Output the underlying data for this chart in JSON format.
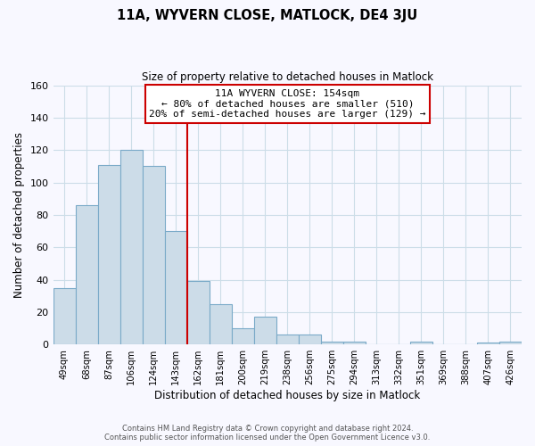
{
  "title": "11A, WYVERN CLOSE, MATLOCK, DE4 3JU",
  "subtitle": "Size of property relative to detached houses in Matlock",
  "xlabel": "Distribution of detached houses by size in Matlock",
  "ylabel": "Number of detached properties",
  "bar_labels": [
    "49sqm",
    "68sqm",
    "87sqm",
    "106sqm",
    "124sqm",
    "143sqm",
    "162sqm",
    "181sqm",
    "200sqm",
    "219sqm",
    "238sqm",
    "256sqm",
    "275sqm",
    "294sqm",
    "313sqm",
    "332sqm",
    "351sqm",
    "369sqm",
    "388sqm",
    "407sqm",
    "426sqm"
  ],
  "bar_values": [
    35,
    86,
    111,
    120,
    110,
    70,
    39,
    25,
    10,
    17,
    6,
    6,
    2,
    2,
    0,
    0,
    2,
    0,
    0,
    1,
    2
  ],
  "bar_color": "#ccdce8",
  "bar_edge_color": "#7aaac8",
  "ylim": [
    0,
    160
  ],
  "yticks": [
    0,
    20,
    40,
    60,
    80,
    100,
    120,
    140,
    160
  ],
  "vline_x": 6.0,
  "vline_color": "#cc0000",
  "annotation_title": "11A WYVERN CLOSE: 154sqm",
  "annotation_line1": "← 80% of detached houses are smaller (510)",
  "annotation_line2": "20% of semi-detached houses are larger (129) →",
  "annotation_box_color": "#ffffff",
  "annotation_box_edge": "#cc0000",
  "footer1": "Contains HM Land Registry data © Crown copyright and database right 2024.",
  "footer2": "Contains public sector information licensed under the Open Government Licence v3.0.",
  "background_color": "#f8f8ff",
  "grid_color": "#ccdde8"
}
